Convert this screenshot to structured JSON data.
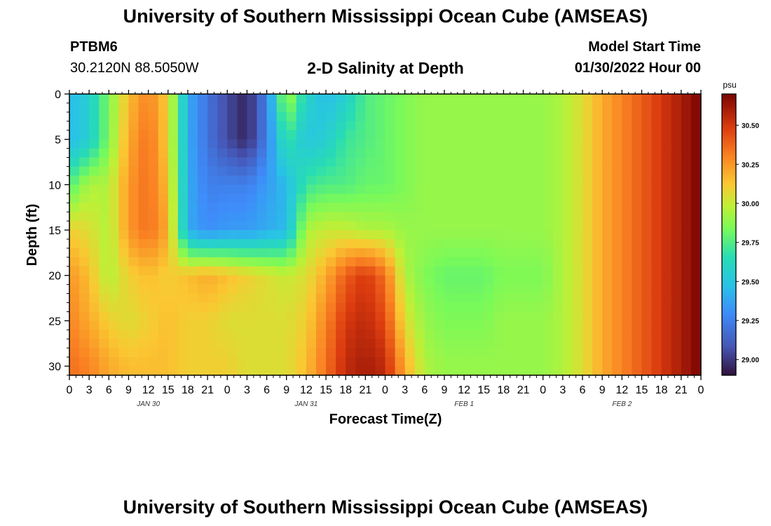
{
  "header": {
    "title": "University of Southern Mississippi Ocean Cube (AMSEAS)",
    "station_id": "PTBM6",
    "station_coords": "30.2120N  88.5050W",
    "subtitle": "2-D Salinity at Depth",
    "model_start_label": "Model Start Time",
    "model_start_value": "01/30/2022 Hour 00"
  },
  "footer": {
    "title": "University of Southern Mississippi Ocean Cube (AMSEAS)"
  },
  "chart_data": {
    "type": "heatmap",
    "title": "2-D Salinity at Depth",
    "xlabel": "Forecast Time(Z)",
    "ylabel": "Depth (ft)",
    "x_hours": [
      0,
      3,
      6,
      9,
      12,
      15,
      18,
      21,
      24,
      27,
      30,
      33,
      36,
      39,
      42,
      45,
      48,
      51,
      54,
      57,
      60,
      63,
      66,
      69,
      72,
      75,
      78,
      81,
      84,
      87,
      90,
      93,
      96
    ],
    "x_tick_labels": [
      "0",
      "3",
      "6",
      "9",
      "12",
      "15",
      "18",
      "21",
      "0",
      "3",
      "6",
      "9",
      "12",
      "15",
      "18",
      "21",
      "0",
      "3",
      "6",
      "9",
      "12",
      "15",
      "18",
      "21",
      "0",
      "3",
      "6",
      "9",
      "12",
      "15",
      "18",
      "21",
      "0"
    ],
    "date_labels": [
      {
        "hour": 12,
        "label": "JAN 30"
      },
      {
        "hour": 36,
        "label": "JAN 31"
      },
      {
        "hour": 60,
        "label": "FEB 1"
      },
      {
        "hour": 84,
        "label": "FEB 2"
      }
    ],
    "ylim": [
      0,
      31
    ],
    "y_ticks": [
      0,
      5,
      10,
      15,
      20,
      25,
      30
    ],
    "colorbar": {
      "unit": "psu",
      "range": [
        28.9,
        30.7
      ],
      "ticks": [
        29.0,
        29.25,
        29.5,
        29.75,
        30.0,
        30.25,
        30.5
      ],
      "tick_labels": [
        "29.00",
        "29.25",
        "29.50",
        "29.75",
        "30.00",
        "30.25",
        "30.50"
      ]
    },
    "depths_ft": [
      0,
      5,
      10,
      15,
      20,
      25,
      30
    ],
    "salinity_psu": [
      [
        29.45,
        29.55,
        29.85,
        30.15,
        30.3,
        30.1,
        29.4,
        29.2,
        29.05,
        28.95,
        29.25,
        29.95,
        29.6,
        29.45,
        29.55,
        29.75,
        29.8,
        29.85,
        29.9,
        29.9,
        29.9,
        29.9,
        29.9,
        29.9,
        29.9,
        29.95,
        30.05,
        30.2,
        30.3,
        30.4,
        30.5,
        30.6,
        30.7
      ],
      [
        29.45,
        29.55,
        29.85,
        30.2,
        30.35,
        30.1,
        29.4,
        29.2,
        29.05,
        28.95,
        29.25,
        29.7,
        29.5,
        29.55,
        29.7,
        29.75,
        29.8,
        29.85,
        29.9,
        29.9,
        29.9,
        29.9,
        29.9,
        29.9,
        29.9,
        29.95,
        30.05,
        30.2,
        30.3,
        30.4,
        30.5,
        30.6,
        30.7
      ],
      [
        29.75,
        29.95,
        29.95,
        30.25,
        30.35,
        30.15,
        29.4,
        29.25,
        29.25,
        29.25,
        29.35,
        29.45,
        29.7,
        29.75,
        29.75,
        29.8,
        29.8,
        29.85,
        29.9,
        29.9,
        29.9,
        29.9,
        29.9,
        29.9,
        29.9,
        29.95,
        30.05,
        30.2,
        30.3,
        30.4,
        30.5,
        30.6,
        30.7
      ],
      [
        30.1,
        30.05,
        29.95,
        30.25,
        30.35,
        30.2,
        29.4,
        29.3,
        29.35,
        29.35,
        29.4,
        29.45,
        29.95,
        30.0,
        30.0,
        29.95,
        29.95,
        29.9,
        29.9,
        29.9,
        29.9,
        29.9,
        29.9,
        29.9,
        29.9,
        29.95,
        30.05,
        30.2,
        30.3,
        30.4,
        30.5,
        30.6,
        30.7
      ],
      [
        30.25,
        30.15,
        29.95,
        30.1,
        30.15,
        30.1,
        30.15,
        30.2,
        30.15,
        30.1,
        30.05,
        30.0,
        30.05,
        30.2,
        30.4,
        30.5,
        30.35,
        29.95,
        29.85,
        29.8,
        29.8,
        29.8,
        29.85,
        29.85,
        29.85,
        29.95,
        30.05,
        30.2,
        30.3,
        30.4,
        30.5,
        30.6,
        30.7
      ],
      [
        30.3,
        30.2,
        30.1,
        30.05,
        30.1,
        30.15,
        30.1,
        30.1,
        30.05,
        30.05,
        30.05,
        30.05,
        30.1,
        30.3,
        30.5,
        30.55,
        30.45,
        30.05,
        29.9,
        29.85,
        29.85,
        29.85,
        29.9,
        29.9,
        29.9,
        29.95,
        30.05,
        30.2,
        30.3,
        30.4,
        30.5,
        30.6,
        30.7
      ],
      [
        30.35,
        30.3,
        30.2,
        30.15,
        30.15,
        30.15,
        30.1,
        30.1,
        30.1,
        30.05,
        30.05,
        30.05,
        30.15,
        30.35,
        30.55,
        30.6,
        30.55,
        30.2,
        29.95,
        29.9,
        29.9,
        29.9,
        29.9,
        29.9,
        29.9,
        29.95,
        30.05,
        30.2,
        30.3,
        30.4,
        30.5,
        30.6,
        30.7
      ]
    ]
  }
}
